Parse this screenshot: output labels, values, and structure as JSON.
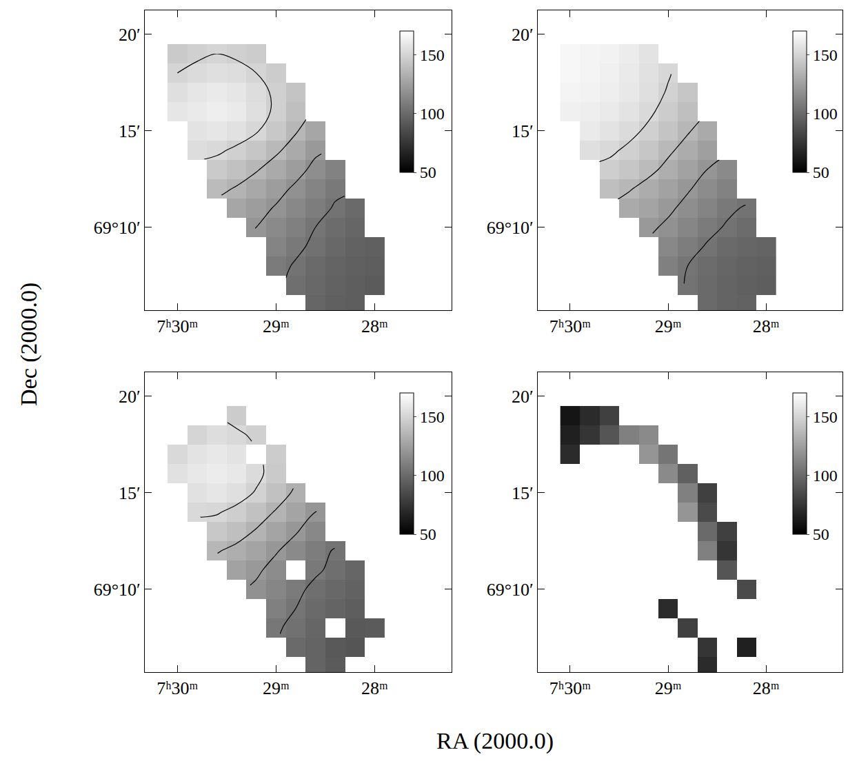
{
  "chart_data": {
    "type": "heatmap",
    "xlabel": "RA (2000.0)",
    "ylabel": "Dec (2000.0)",
    "color": "gray",
    "grid": false,
    "xlim": [
      30.33,
      27.22
    ],
    "ylim": [
      5.7,
      21.25
    ],
    "xticks": [
      {
        "value": 30,
        "label": "7ʰ30ᵐ"
      },
      {
        "value": 29,
        "label": "29ᵐ"
      },
      {
        "value": 28,
        "label": "28ᵐ"
      }
    ],
    "yticks": [
      {
        "value": 10,
        "label": "69°10′"
      },
      {
        "value": 15,
        "label": "15′"
      },
      {
        "value": 20,
        "label": "20′"
      }
    ],
    "zlim": [
      50,
      170
    ],
    "zticks": [
      50,
      100,
      150
    ],
    "x": [
      30.0,
      29.8,
      29.6,
      29.4,
      29.2,
      29.0,
      28.8,
      28.6,
      28.4,
      28.2,
      28.0
    ],
    "y": [
      6,
      7,
      8,
      9,
      10,
      11,
      12,
      13,
      14,
      15,
      16,
      17,
      18,
      19
    ],
    "panels": [
      {
        "contours": [
          105,
          120,
          135,
          150
        ],
        "values": [
          [
            null,
            null,
            null,
            null,
            null,
            null,
            null,
            98,
            95,
            94,
            null
          ],
          [
            null,
            null,
            null,
            null,
            null,
            null,
            102,
            99,
            96,
            94,
            93
          ],
          [
            null,
            null,
            null,
            null,
            null,
            108,
            104,
            100,
            97,
            95,
            94
          ],
          [
            null,
            null,
            null,
            null,
            null,
            112,
            107,
            103,
            99,
            96,
            95
          ],
          [
            null,
            null,
            null,
            null,
            120,
            115,
            110,
            105,
            101,
            98,
            null
          ],
          [
            null,
            null,
            null,
            128,
            124,
            119,
            114,
            109,
            104,
            100,
            null
          ],
          [
            null,
            null,
            138,
            134,
            129,
            124,
            118,
            112,
            107,
            null,
            null
          ],
          [
            null,
            null,
            145,
            141,
            136,
            130,
            124,
            117,
            111,
            null,
            null
          ],
          [
            null,
            154,
            152,
            148,
            143,
            137,
            130,
            122,
            null,
            null,
            null
          ],
          [
            null,
            157,
            158,
            156,
            151,
            144,
            136,
            128,
            null,
            null,
            null
          ],
          [
            158,
            160,
            162,
            160,
            155,
            148,
            140,
            null,
            null,
            null,
            null
          ],
          [
            155,
            158,
            160,
            158,
            154,
            148,
            142,
            null,
            null,
            null,
            null
          ],
          [
            150,
            153,
            155,
            154,
            150,
            146,
            null,
            null,
            null,
            null,
            null
          ],
          [
            145,
            148,
            150,
            148,
            146,
            null,
            null,
            null,
            null,
            null,
            null
          ]
        ]
      },
      {
        "contours": [
          105,
          120,
          135,
          150
        ],
        "values": [
          [
            null,
            null,
            null,
            null,
            null,
            null,
            null,
            100,
            97,
            96,
            null
          ],
          [
            null,
            null,
            null,
            null,
            null,
            null,
            104,
            100,
            97,
            95,
            94
          ],
          [
            null,
            null,
            null,
            null,
            null,
            110,
            105,
            101,
            98,
            96,
            95
          ],
          [
            null,
            null,
            null,
            null,
            null,
            114,
            109,
            104,
            100,
            98,
            97
          ],
          [
            null,
            null,
            null,
            null,
            122,
            118,
            113,
            108,
            104,
            101,
            null
          ],
          [
            null,
            null,
            null,
            130,
            127,
            122,
            117,
            112,
            107,
            104,
            null
          ],
          [
            null,
            null,
            140,
            136,
            131,
            126,
            121,
            116,
            111,
            null,
            null
          ],
          [
            null,
            null,
            147,
            143,
            138,
            132,
            126,
            120,
            115,
            null,
            null
          ],
          [
            null,
            155,
            152,
            148,
            143,
            137,
            131,
            125,
            null,
            null,
            null
          ],
          [
            null,
            160,
            157,
            153,
            148,
            142,
            136,
            130,
            null,
            null,
            null
          ],
          [
            163,
            162,
            160,
            157,
            152,
            146,
            140,
            null,
            null,
            null,
            null
          ],
          [
            165,
            164,
            162,
            159,
            155,
            149,
            143,
            null,
            null,
            null,
            null
          ],
          [
            166,
            165,
            163,
            160,
            156,
            151,
            null,
            null,
            null,
            null,
            null
          ],
          [
            166,
            165,
            164,
            161,
            157,
            null,
            null,
            null,
            null,
            null,
            null
          ]
        ]
      },
      {
        "contours": [
          105,
          120,
          135,
          150
        ],
        "values": [
          [
            null,
            null,
            null,
            null,
            null,
            null,
            null,
            97,
            93,
            null,
            null
          ],
          [
            null,
            null,
            null,
            null,
            null,
            null,
            100,
            97,
            92,
            90,
            null
          ],
          [
            null,
            null,
            null,
            null,
            null,
            106,
            103,
            98,
            null,
            92,
            93
          ],
          [
            null,
            null,
            null,
            null,
            null,
            110,
            105,
            100,
            97,
            94,
            null
          ],
          [
            null,
            null,
            null,
            null,
            118,
            113,
            108,
            102,
            99,
            96,
            null
          ],
          [
            null,
            null,
            null,
            126,
            122,
            116,
            null,
            107,
            102,
            98,
            null
          ],
          [
            null,
            null,
            136,
            132,
            127,
            121,
            115,
            109,
            104,
            null,
            null
          ],
          [
            null,
            null,
            144,
            140,
            134,
            127,
            121,
            114,
            null,
            null,
            null
          ],
          [
            null,
            152,
            151,
            147,
            141,
            134,
            127,
            120,
            null,
            null,
            null
          ],
          [
            null,
            156,
            158,
            155,
            149,
            141,
            133,
            null,
            null,
            null,
            null
          ],
          [
            156,
            159,
            161,
            159,
            153,
            145,
            null,
            null,
            null,
            null,
            null
          ],
          [
            152,
            157,
            159,
            157,
            null,
            146,
            null,
            null,
            null,
            null,
            null
          ],
          [
            null,
            150,
            154,
            152,
            148,
            null,
            null,
            null,
            null,
            null,
            null
          ],
          [
            null,
            null,
            null,
            146,
            null,
            null,
            null,
            null,
            null,
            null,
            null
          ]
        ]
      },
      {
        "values": [
          [
            null,
            null,
            null,
            null,
            null,
            null,
            null,
            70,
            null,
            null,
            null
          ],
          [
            null,
            null,
            null,
            null,
            null,
            null,
            null,
            75,
            null,
            65,
            null
          ],
          [
            null,
            null,
            null,
            null,
            null,
            null,
            80,
            null,
            null,
            null,
            null
          ],
          [
            null,
            null,
            null,
            null,
            null,
            70,
            null,
            null,
            null,
            null,
            null
          ],
          [
            null,
            null,
            null,
            null,
            null,
            null,
            null,
            null,
            null,
            85,
            null
          ],
          [
            null,
            null,
            null,
            null,
            null,
            null,
            null,
            null,
            90,
            null,
            null
          ],
          [
            null,
            null,
            null,
            null,
            null,
            null,
            null,
            110,
            75,
            null,
            null
          ],
          [
            null,
            null,
            null,
            null,
            null,
            null,
            null,
            100,
            80,
            null,
            null
          ],
          [
            null,
            null,
            null,
            null,
            null,
            null,
            120,
            85,
            null,
            null,
            null
          ],
          [
            null,
            null,
            null,
            null,
            null,
            null,
            110,
            80,
            null,
            null,
            null
          ],
          [
            null,
            null,
            null,
            null,
            null,
            115,
            95,
            null,
            null,
            null,
            null
          ],
          [
            70,
            null,
            null,
            null,
            120,
            105,
            null,
            null,
            null,
            null,
            null
          ],
          [
            65,
            75,
            90,
            110,
            115,
            null,
            null,
            null,
            null,
            null,
            null
          ],
          [
            60,
            70,
            80,
            null,
            null,
            null,
            null,
            null,
            null,
            null,
            null
          ]
        ]
      }
    ]
  }
}
